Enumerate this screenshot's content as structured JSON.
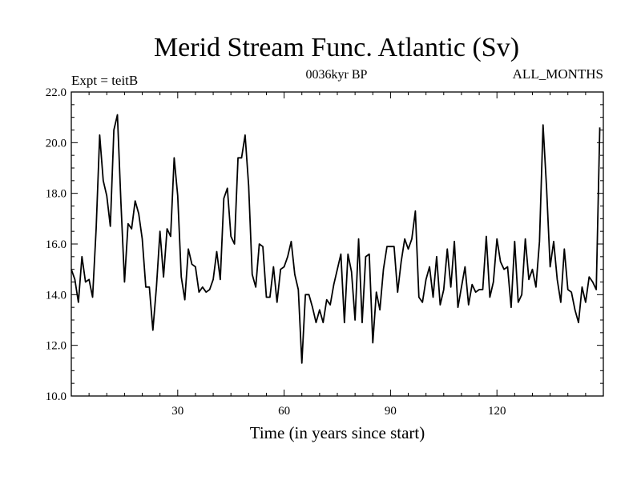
{
  "chart_data": {
    "type": "line",
    "title": "Merid Stream Func. Atlantic (Sv)",
    "left_label": "Expt = teitB",
    "center_label": "0036kyr BP",
    "right_label": "ALL_MONTHS",
    "xlabel": "Time (in years since start)",
    "ylabel": "",
    "xlim": [
      0,
      150
    ],
    "ylim": [
      10,
      22
    ],
    "x_ticks": [
      30,
      60,
      90,
      120
    ],
    "x_tick_labels": [
      "30",
      "60",
      "90",
      "120"
    ],
    "y_ticks": [
      10,
      12,
      14,
      16,
      18,
      20,
      22
    ],
    "y_tick_labels": [
      "10.0",
      "12.0",
      "14.0",
      "16.0",
      "18.0",
      "20.0",
      "22.0"
    ],
    "grid": false,
    "line_color": "#000000",
    "series": [
      {
        "x_start": 0,
        "x_step": 1,
        "values": [
          15.0,
          14.6,
          13.7,
          15.5,
          14.5,
          14.6,
          13.9,
          16.6,
          20.3,
          18.5,
          17.9,
          16.7,
          20.5,
          21.1,
          17.6,
          14.5,
          16.8,
          16.6,
          17.7,
          17.2,
          16.2,
          14.3,
          14.3,
          12.6,
          14.3,
          16.5,
          14.7,
          16.6,
          16.3,
          19.4,
          17.9,
          14.7,
          13.8,
          15.8,
          15.2,
          15.1,
          14.1,
          14.3,
          14.1,
          14.2,
          14.6,
          15.7,
          14.6,
          17.8,
          18.2,
          16.3,
          16.0,
          19.4,
          19.4,
          20.3,
          18.3,
          14.8,
          14.3,
          16.0,
          15.9,
          13.9,
          13.9,
          15.1,
          13.7,
          15.0,
          15.1,
          15.5,
          16.1,
          14.8,
          14.2,
          11.3,
          14.0,
          14.0,
          13.5,
          12.9,
          13.4,
          12.9,
          13.8,
          13.6,
          14.4,
          15.0,
          15.6,
          12.9,
          15.6,
          14.9,
          13.0,
          16.2,
          12.9,
          15.5,
          15.6,
          12.1,
          14.1,
          13.4,
          15.0,
          15.9,
          15.9,
          15.9,
          14.1,
          15.3,
          16.2,
          15.8,
          16.2,
          17.3,
          13.9,
          13.7,
          14.6,
          15.1,
          13.9,
          15.5,
          13.6,
          14.2,
          15.8,
          14.3,
          16.1,
          13.5,
          14.3,
          15.1,
          13.6,
          14.4,
          14.1,
          14.2,
          14.2,
          16.3,
          13.9,
          14.5,
          16.2,
          15.3,
          15.0,
          15.1,
          13.5,
          16.1,
          13.7,
          14.0,
          16.2,
          14.6,
          15.0,
          14.3,
          16.1,
          20.7,
          18.2,
          15.1,
          16.1,
          14.6,
          13.7,
          15.8,
          14.2,
          14.1,
          13.4,
          12.9,
          14.3,
          13.7,
          14.7,
          14.5,
          14.2,
          20.6
        ]
      }
    ]
  }
}
